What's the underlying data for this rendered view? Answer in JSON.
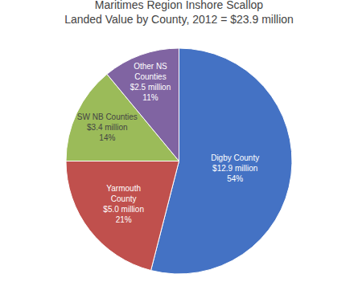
{
  "chart_data": {
    "type": "pie",
    "title": "Maritimes Region Inshore Scallop\nLanded Value by County, 2012 = $23.9 million",
    "categories": [
      "Digby County\n$12.9 million\n54%",
      "Yarmouth\nCounty\n$5.0 million\n21%",
      "SW NB Counties\n$3.4 million\n14%",
      "Other NS\nCounties\n$2.5 million\n11%"
    ],
    "values": [
      54,
      21,
      14,
      11
    ],
    "colors": [
      "#4472C4",
      "#C0504D",
      "#9BBB59",
      "#8064A2"
    ]
  }
}
